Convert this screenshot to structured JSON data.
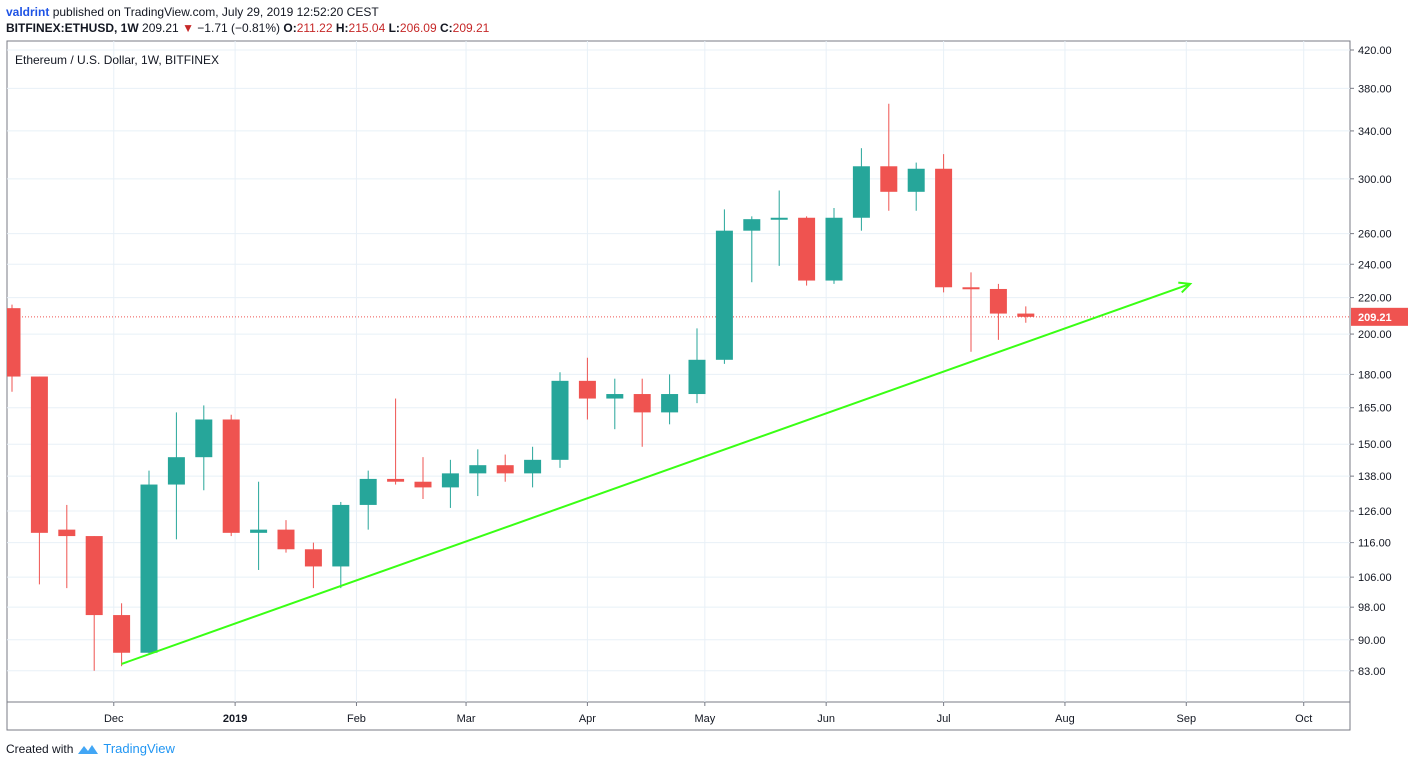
{
  "header": {
    "author": "valdrint",
    "published_text": "published on TradingView.com, July 29, 2019 12:52:20 CEST",
    "symbol": "BITFINEX:ETHUSD, 1W",
    "last": "209.21",
    "change": "−1.71 (−0.81%)",
    "o_label": "O:",
    "o_value": "211.22",
    "h_label": "H:",
    "h_value": "215.04",
    "l_label": "L:",
    "l_value": "206.09",
    "c_label": "C:",
    "c_value": "209.21"
  },
  "footer": {
    "created_with": "Created with",
    "brand": "TradingView"
  },
  "colors": {
    "up": "#26a69a",
    "down": "#ef5350",
    "trendline": "#39ff14",
    "price_line": "#ef5350",
    "grid": "#e8f0f7"
  },
  "chart_data": {
    "type": "candlestick",
    "title": "Ethereum / U.S. Dollar, 1W, BITFINEX",
    "y_scale": "log",
    "ylim": [
      76.5,
      430
    ],
    "y_ticks": [
      83,
      90,
      98,
      106,
      116,
      126,
      138,
      150,
      165,
      180,
      200,
      220,
      240,
      260,
      300,
      340,
      380,
      420
    ],
    "y_tick_labels": [
      "83.00",
      "90.00",
      "98.00",
      "106.00",
      "116.00",
      "126.00",
      "138.00",
      "150.00",
      "165.00",
      "180.00",
      "200.00",
      "220.00",
      "240.00",
      "260.00",
      "300.00",
      "340.00",
      "380.00",
      "420.00"
    ],
    "x_ticks": [
      {
        "label": "Dec",
        "date": "2018-12-01"
      },
      {
        "label": "2019",
        "date": "2019-01-01"
      },
      {
        "label": "Feb",
        "date": "2019-02-01"
      },
      {
        "label": "Mar",
        "date": "2019-03-01"
      },
      {
        "label": "Apr",
        "date": "2019-04-01"
      },
      {
        "label": "May",
        "date": "2019-05-01"
      },
      {
        "label": "Jun",
        "date": "2019-06-01"
      },
      {
        "label": "Jul",
        "date": "2019-07-01"
      },
      {
        "label": "Aug",
        "date": "2019-08-01"
      },
      {
        "label": "Sep",
        "date": "2019-09-01"
      },
      {
        "label": "Oct",
        "date": "2019-10-01"
      }
    ],
    "candles": [
      {
        "date": "2018-11-05",
        "o": 214,
        "h": 216,
        "l": 172,
        "c": 179
      },
      {
        "date": "2018-11-12",
        "o": 179,
        "h": 179,
        "l": 104,
        "c": 119
      },
      {
        "date": "2018-11-19",
        "o": 120,
        "h": 128,
        "l": 103,
        "c": 118
      },
      {
        "date": "2018-11-26",
        "o": 118,
        "h": 118,
        "l": 83,
        "c": 96
      },
      {
        "date": "2018-12-03",
        "o": 96,
        "h": 99,
        "l": 84,
        "c": 87
      },
      {
        "date": "2018-12-10",
        "o": 87,
        "h": 140,
        "l": 86.5,
        "c": 135
      },
      {
        "date": "2018-12-17",
        "o": 135,
        "h": 163,
        "l": 117,
        "c": 145
      },
      {
        "date": "2018-12-24",
        "o": 145,
        "h": 166,
        "l": 133,
        "c": 160
      },
      {
        "date": "2018-12-31",
        "o": 160,
        "h": 162,
        "l": 118,
        "c": 119
      },
      {
        "date": "2019-01-07",
        "o": 119,
        "h": 136,
        "l": 108,
        "c": 120
      },
      {
        "date": "2019-01-14",
        "o": 120,
        "h": 123,
        "l": 113,
        "c": 114
      },
      {
        "date": "2019-01-21",
        "o": 114,
        "h": 116,
        "l": 103,
        "c": 109
      },
      {
        "date": "2019-01-28",
        "o": 109,
        "h": 129,
        "l": 103,
        "c": 128
      },
      {
        "date": "2019-02-04",
        "o": 128,
        "h": 140,
        "l": 120,
        "c": 137
      },
      {
        "date": "2019-02-11",
        "o": 137,
        "h": 169,
        "l": 135,
        "c": 136
      },
      {
        "date": "2019-02-18",
        "o": 136,
        "h": 145,
        "l": 130,
        "c": 134
      },
      {
        "date": "2019-02-25",
        "o": 134,
        "h": 144,
        "l": 127,
        "c": 139
      },
      {
        "date": "2019-03-04",
        "o": 139,
        "h": 148,
        "l": 131,
        "c": 142
      },
      {
        "date": "2019-03-11",
        "o": 142,
        "h": 146,
        "l": 136,
        "c": 139
      },
      {
        "date": "2019-03-18",
        "o": 139,
        "h": 149,
        "l": 134,
        "c": 144
      },
      {
        "date": "2019-03-25",
        "o": 144,
        "h": 181,
        "l": 141,
        "c": 177
      },
      {
        "date": "2019-04-01",
        "o": 177,
        "h": 188,
        "l": 160,
        "c": 169
      },
      {
        "date": "2019-04-08",
        "o": 169,
        "h": 178,
        "l": 156,
        "c": 171
      },
      {
        "date": "2019-04-15",
        "o": 171,
        "h": 178,
        "l": 149,
        "c": 163
      },
      {
        "date": "2019-04-22",
        "o": 163,
        "h": 180,
        "l": 158,
        "c": 171
      },
      {
        "date": "2019-04-29",
        "o": 171,
        "h": 203,
        "l": 167,
        "c": 187
      },
      {
        "date": "2019-05-06",
        "o": 187,
        "h": 277,
        "l": 185,
        "c": 262
      },
      {
        "date": "2019-05-13",
        "o": 262,
        "h": 272,
        "l": 229,
        "c": 270
      },
      {
        "date": "2019-05-20",
        "o": 270,
        "h": 291,
        "l": 239,
        "c": 271
      },
      {
        "date": "2019-05-27",
        "o": 271,
        "h": 272,
        "l": 227,
        "c": 230
      },
      {
        "date": "2019-06-03",
        "o": 230,
        "h": 278,
        "l": 228,
        "c": 271
      },
      {
        "date": "2019-06-10",
        "o": 271,
        "h": 325,
        "l": 262,
        "c": 310
      },
      {
        "date": "2019-06-17",
        "o": 310,
        "h": 365,
        "l": 276,
        "c": 290
      },
      {
        "date": "2019-06-24",
        "o": 290,
        "h": 313,
        "l": 276,
        "c": 308
      },
      {
        "date": "2019-07-01",
        "o": 308,
        "h": 320,
        "l": 223,
        "c": 226
      },
      {
        "date": "2019-07-08",
        "o": 226,
        "h": 235,
        "l": 191,
        "c": 225
      },
      {
        "date": "2019-07-15",
        "o": 225,
        "h": 228,
        "l": 197,
        "c": 211
      },
      {
        "date": "2019-07-22",
        "o": 211,
        "h": 215,
        "l": 206,
        "c": 209.21
      }
    ],
    "trendline": {
      "from": {
        "date": "2018-12-03",
        "price": 84.5
      },
      "to": {
        "date": "2019-09-02",
        "price": 228
      }
    },
    "last_price": 209.21,
    "last_price_label": "209.21"
  }
}
